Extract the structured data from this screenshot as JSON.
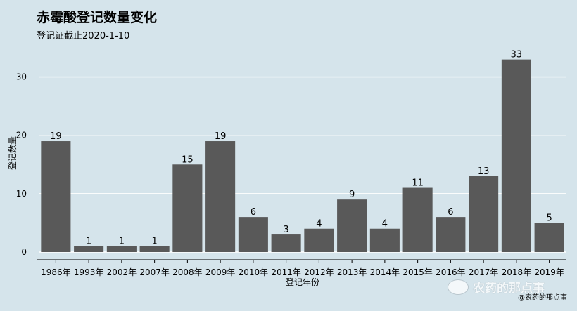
{
  "chart_data": {
    "type": "bar",
    "title": "赤霉酸登记数量变化",
    "subtitle": "登记证截止2020-1-10",
    "xlabel": "登记年份",
    "ylabel": "登记数量",
    "categories": [
      "1986年",
      "1993年",
      "2002年",
      "2007年",
      "2008年",
      "2009年",
      "2010年",
      "2011年",
      "2012年",
      "2013年",
      "2014年",
      "2015年",
      "2016年",
      "2017年",
      "2018年",
      "2019年"
    ],
    "values": [
      19,
      1,
      1,
      1,
      15,
      19,
      6,
      3,
      4,
      9,
      4,
      11,
      6,
      13,
      33,
      5
    ],
    "ylim": [
      0,
      35
    ],
    "yticks": [
      0,
      10,
      20,
      30
    ],
    "grid": "horizontal",
    "legend": "none",
    "bar_color": "#595959",
    "background_color": "#d5e4eb",
    "grid_color": "#ffffff"
  },
  "watermark": {
    "logo_text": "农药的那点事",
    "credit": "@农药的那点事"
  }
}
